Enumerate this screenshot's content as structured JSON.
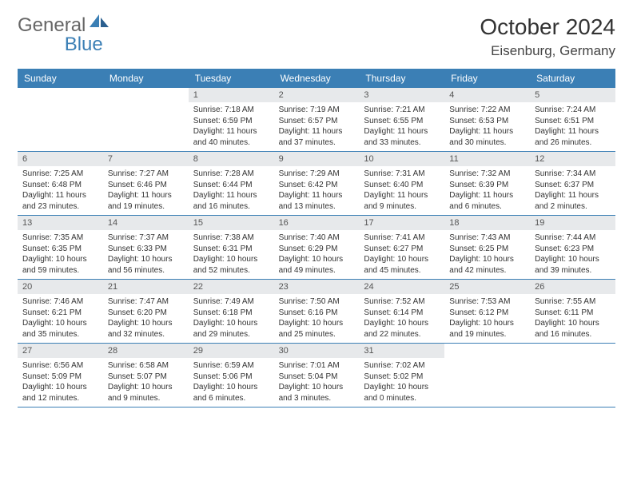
{
  "logo": {
    "general": "General",
    "blue": "Blue"
  },
  "title": "October 2024",
  "location": "Eisenburg, Germany",
  "colors": {
    "header_bg": "#3b7fb5",
    "header_text": "#ffffff",
    "daynum_bg": "#e7e9eb",
    "border": "#3b7fb5",
    "body_text": "#333333"
  },
  "day_names": [
    "Sunday",
    "Monday",
    "Tuesday",
    "Wednesday",
    "Thursday",
    "Friday",
    "Saturday"
  ],
  "weeks": [
    [
      {
        "empty": true
      },
      {
        "empty": true
      },
      {
        "day": "1",
        "sunrise": "Sunrise: 7:18 AM",
        "sunset": "Sunset: 6:59 PM",
        "daylight": "Daylight: 11 hours and 40 minutes."
      },
      {
        "day": "2",
        "sunrise": "Sunrise: 7:19 AM",
        "sunset": "Sunset: 6:57 PM",
        "daylight": "Daylight: 11 hours and 37 minutes."
      },
      {
        "day": "3",
        "sunrise": "Sunrise: 7:21 AM",
        "sunset": "Sunset: 6:55 PM",
        "daylight": "Daylight: 11 hours and 33 minutes."
      },
      {
        "day": "4",
        "sunrise": "Sunrise: 7:22 AM",
        "sunset": "Sunset: 6:53 PM",
        "daylight": "Daylight: 11 hours and 30 minutes."
      },
      {
        "day": "5",
        "sunrise": "Sunrise: 7:24 AM",
        "sunset": "Sunset: 6:51 PM",
        "daylight": "Daylight: 11 hours and 26 minutes."
      }
    ],
    [
      {
        "day": "6",
        "sunrise": "Sunrise: 7:25 AM",
        "sunset": "Sunset: 6:48 PM",
        "daylight": "Daylight: 11 hours and 23 minutes."
      },
      {
        "day": "7",
        "sunrise": "Sunrise: 7:27 AM",
        "sunset": "Sunset: 6:46 PM",
        "daylight": "Daylight: 11 hours and 19 minutes."
      },
      {
        "day": "8",
        "sunrise": "Sunrise: 7:28 AM",
        "sunset": "Sunset: 6:44 PM",
        "daylight": "Daylight: 11 hours and 16 minutes."
      },
      {
        "day": "9",
        "sunrise": "Sunrise: 7:29 AM",
        "sunset": "Sunset: 6:42 PM",
        "daylight": "Daylight: 11 hours and 13 minutes."
      },
      {
        "day": "10",
        "sunrise": "Sunrise: 7:31 AM",
        "sunset": "Sunset: 6:40 PM",
        "daylight": "Daylight: 11 hours and 9 minutes."
      },
      {
        "day": "11",
        "sunrise": "Sunrise: 7:32 AM",
        "sunset": "Sunset: 6:39 PM",
        "daylight": "Daylight: 11 hours and 6 minutes."
      },
      {
        "day": "12",
        "sunrise": "Sunrise: 7:34 AM",
        "sunset": "Sunset: 6:37 PM",
        "daylight": "Daylight: 11 hours and 2 minutes."
      }
    ],
    [
      {
        "day": "13",
        "sunrise": "Sunrise: 7:35 AM",
        "sunset": "Sunset: 6:35 PM",
        "daylight": "Daylight: 10 hours and 59 minutes."
      },
      {
        "day": "14",
        "sunrise": "Sunrise: 7:37 AM",
        "sunset": "Sunset: 6:33 PM",
        "daylight": "Daylight: 10 hours and 56 minutes."
      },
      {
        "day": "15",
        "sunrise": "Sunrise: 7:38 AM",
        "sunset": "Sunset: 6:31 PM",
        "daylight": "Daylight: 10 hours and 52 minutes."
      },
      {
        "day": "16",
        "sunrise": "Sunrise: 7:40 AM",
        "sunset": "Sunset: 6:29 PM",
        "daylight": "Daylight: 10 hours and 49 minutes."
      },
      {
        "day": "17",
        "sunrise": "Sunrise: 7:41 AM",
        "sunset": "Sunset: 6:27 PM",
        "daylight": "Daylight: 10 hours and 45 minutes."
      },
      {
        "day": "18",
        "sunrise": "Sunrise: 7:43 AM",
        "sunset": "Sunset: 6:25 PM",
        "daylight": "Daylight: 10 hours and 42 minutes."
      },
      {
        "day": "19",
        "sunrise": "Sunrise: 7:44 AM",
        "sunset": "Sunset: 6:23 PM",
        "daylight": "Daylight: 10 hours and 39 minutes."
      }
    ],
    [
      {
        "day": "20",
        "sunrise": "Sunrise: 7:46 AM",
        "sunset": "Sunset: 6:21 PM",
        "daylight": "Daylight: 10 hours and 35 minutes."
      },
      {
        "day": "21",
        "sunrise": "Sunrise: 7:47 AM",
        "sunset": "Sunset: 6:20 PM",
        "daylight": "Daylight: 10 hours and 32 minutes."
      },
      {
        "day": "22",
        "sunrise": "Sunrise: 7:49 AM",
        "sunset": "Sunset: 6:18 PM",
        "daylight": "Daylight: 10 hours and 29 minutes."
      },
      {
        "day": "23",
        "sunrise": "Sunrise: 7:50 AM",
        "sunset": "Sunset: 6:16 PM",
        "daylight": "Daylight: 10 hours and 25 minutes."
      },
      {
        "day": "24",
        "sunrise": "Sunrise: 7:52 AM",
        "sunset": "Sunset: 6:14 PM",
        "daylight": "Daylight: 10 hours and 22 minutes."
      },
      {
        "day": "25",
        "sunrise": "Sunrise: 7:53 AM",
        "sunset": "Sunset: 6:12 PM",
        "daylight": "Daylight: 10 hours and 19 minutes."
      },
      {
        "day": "26",
        "sunrise": "Sunrise: 7:55 AM",
        "sunset": "Sunset: 6:11 PM",
        "daylight": "Daylight: 10 hours and 16 minutes."
      }
    ],
    [
      {
        "day": "27",
        "sunrise": "Sunrise: 6:56 AM",
        "sunset": "Sunset: 5:09 PM",
        "daylight": "Daylight: 10 hours and 12 minutes."
      },
      {
        "day": "28",
        "sunrise": "Sunrise: 6:58 AM",
        "sunset": "Sunset: 5:07 PM",
        "daylight": "Daylight: 10 hours and 9 minutes."
      },
      {
        "day": "29",
        "sunrise": "Sunrise: 6:59 AM",
        "sunset": "Sunset: 5:06 PM",
        "daylight": "Daylight: 10 hours and 6 minutes."
      },
      {
        "day": "30",
        "sunrise": "Sunrise: 7:01 AM",
        "sunset": "Sunset: 5:04 PM",
        "daylight": "Daylight: 10 hours and 3 minutes."
      },
      {
        "day": "31",
        "sunrise": "Sunrise: 7:02 AM",
        "sunset": "Sunset: 5:02 PM",
        "daylight": "Daylight: 10 hours and 0 minutes."
      },
      {
        "empty": true
      },
      {
        "empty": true
      }
    ]
  ]
}
